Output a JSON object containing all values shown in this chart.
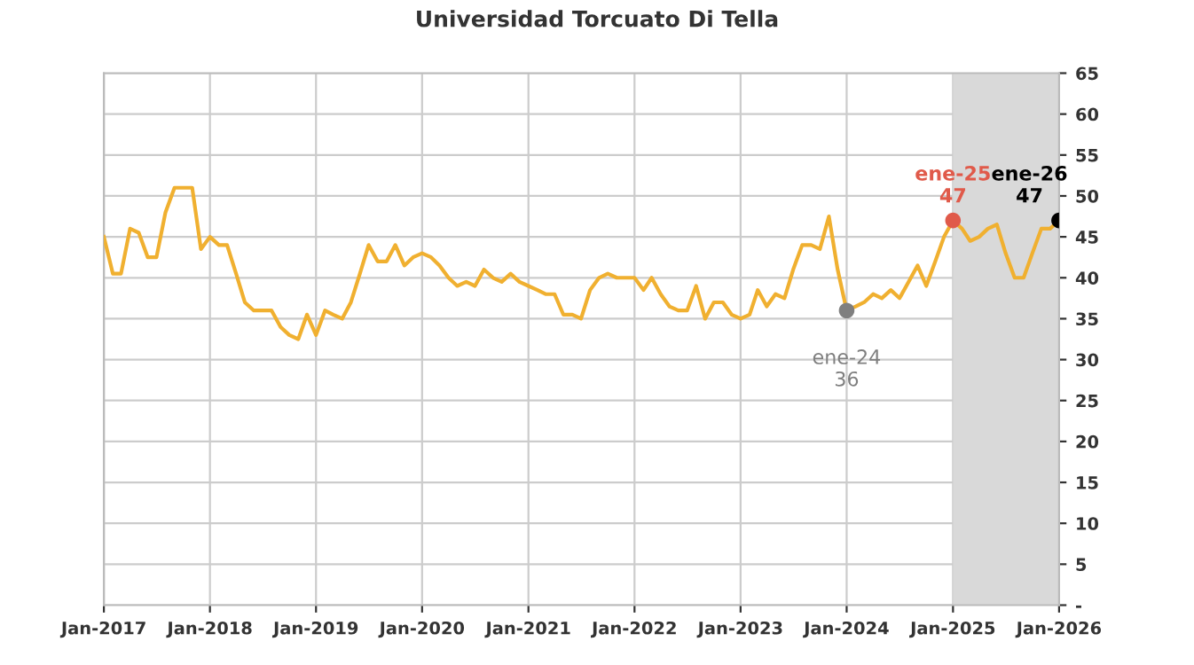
{
  "chart_data": {
    "type": "line",
    "title": "Universidad Torcuato Di Tella",
    "x": [
      "2017-01",
      "2017-02",
      "2017-03",
      "2017-04",
      "2017-05",
      "2017-06",
      "2017-07",
      "2017-08",
      "2017-09",
      "2017-10",
      "2017-11",
      "2017-12",
      "2018-01",
      "2018-02",
      "2018-03",
      "2018-04",
      "2018-05",
      "2018-06",
      "2018-07",
      "2018-08",
      "2018-09",
      "2018-10",
      "2018-11",
      "2018-12",
      "2019-01",
      "2019-02",
      "2019-03",
      "2019-04",
      "2019-05",
      "2019-06",
      "2019-07",
      "2019-08",
      "2019-09",
      "2019-10",
      "2019-11",
      "2019-12",
      "2020-01",
      "2020-02",
      "2020-03",
      "2020-04",
      "2020-05",
      "2020-06",
      "2020-07",
      "2020-08",
      "2020-09",
      "2020-10",
      "2020-11",
      "2020-12",
      "2021-01",
      "2021-02",
      "2021-03",
      "2021-04",
      "2021-05",
      "2021-06",
      "2021-07",
      "2021-08",
      "2021-09",
      "2021-10",
      "2021-11",
      "2021-12",
      "2022-01",
      "2022-02",
      "2022-03",
      "2022-04",
      "2022-05",
      "2022-06",
      "2022-07",
      "2022-08",
      "2022-09",
      "2022-10",
      "2022-11",
      "2022-12",
      "2023-01",
      "2023-02",
      "2023-03",
      "2023-04",
      "2023-05",
      "2023-06",
      "2023-07",
      "2023-08",
      "2023-09",
      "2023-10",
      "2023-11",
      "2023-12",
      "2024-01",
      "2024-02",
      "2024-03",
      "2024-04",
      "2024-05",
      "2024-06",
      "2024-07",
      "2024-08",
      "2024-09",
      "2024-10",
      "2024-11",
      "2024-12",
      "2025-01",
      "2025-02",
      "2025-03",
      "2025-04",
      "2025-05",
      "2025-06",
      "2025-07",
      "2025-08",
      "2025-09",
      "2025-10",
      "2025-11",
      "2025-12",
      "2026-01"
    ],
    "series": [
      {
        "color": "#f0b030",
        "values": [
          45,
          40.5,
          40.5,
          46,
          45.5,
          42.5,
          42.5,
          48,
          51,
          51,
          51,
          43.5,
          45,
          44,
          44,
          40.5,
          37,
          36,
          36,
          36,
          34,
          33,
          32.5,
          35.5,
          33,
          36,
          35.5,
          35,
          37,
          40.5,
          44,
          42,
          42,
          44,
          41.5,
          42.5,
          43,
          42.5,
          41.5,
          40,
          39,
          39.5,
          39,
          41,
          40,
          39.5,
          40.5,
          39.5,
          39,
          38.5,
          38,
          38,
          35.5,
          35.5,
          35,
          38.5,
          40,
          40.5,
          40,
          40,
          40,
          38.5,
          40,
          38,
          36.5,
          36,
          36,
          39,
          35,
          37,
          37,
          35.5,
          35,
          35.5,
          38.5,
          36.5,
          38,
          37.5,
          41,
          44,
          44,
          43.5,
          47.5,
          41,
          36,
          36.5,
          37,
          38,
          37.5,
          38.5,
          37.5,
          39.5,
          41.5,
          39,
          42,
          45,
          47,
          46,
          44.5,
          45,
          46,
          46.5,
          43,
          40,
          40,
          43,
          46,
          46,
          47
        ]
      },
      {
        "type": "scatter",
        "x": [
          "2024-01",
          "2025-01",
          "2026-01"
        ],
        "values": [
          36,
          47,
          47
        ],
        "colors": [
          "#7f7f7f",
          "#e05a4a",
          "#000000"
        ]
      }
    ],
    "annotations": [
      {
        "text": "ene-24\n36",
        "x": "2024-01",
        "y": 36
      },
      {
        "text": "ene-25\n47",
        "x": "2025-01",
        "y": 47
      },
      {
        "text": "ene-26\n47",
        "x": "2026-01",
        "y": 47
      }
    ],
    "bands": [
      {
        "axis": "x",
        "from": "2025-01",
        "to": "2026-01",
        "color": "#d9d9d9"
      }
    ],
    "xlim": [
      "2017-01",
      "2026-01"
    ],
    "xticks": [
      {
        "value": "2017-01",
        "label": "Jan-2017"
      },
      {
        "value": "2018-01",
        "label": "Jan-2018"
      },
      {
        "value": "2019-01",
        "label": "Jan-2019"
      },
      {
        "value": "2020-01",
        "label": "Jan-2020"
      },
      {
        "value": "2021-01",
        "label": "Jan-2021"
      },
      {
        "value": "2022-01",
        "label": "Jan-2022"
      },
      {
        "value": "2023-01",
        "label": "Jan-2023"
      },
      {
        "value": "2024-01",
        "label": "Jan-2024"
      },
      {
        "value": "2025-01",
        "label": "Jan-2025"
      },
      {
        "value": "2026-01",
        "label": "Jan-2026"
      }
    ],
    "ylim": [
      0,
      65
    ],
    "yticks": [
      {
        "value": 0,
        "label": "-"
      },
      5,
      10,
      15,
      20,
      25,
      30,
      35,
      40,
      45,
      50,
      55,
      60,
      65
    ],
    "grid": true,
    "legend": false
  }
}
